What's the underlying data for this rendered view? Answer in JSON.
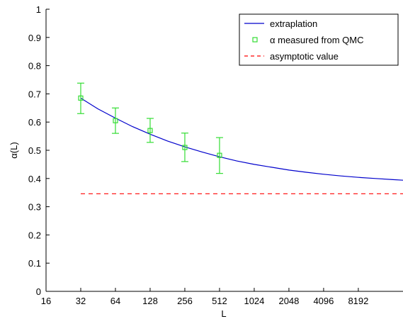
{
  "chart_data": {
    "type": "line",
    "title": "",
    "xlabel": "L",
    "ylabel": "α(L)",
    "xscale": "log2",
    "xlim": [
      16,
      20000
    ],
    "ylim": [
      0,
      1
    ],
    "grid": false,
    "legend_position": "top-right",
    "x_ticks": [
      16,
      32,
      64,
      128,
      256,
      512,
      1024,
      2048,
      4096,
      8192
    ],
    "x_tick_labels": [
      "16",
      "32",
      "64",
      "128",
      "256",
      "512",
      "1024",
      "2048",
      "4096",
      "8192"
    ],
    "y_ticks": [
      0,
      0.1,
      0.2,
      0.3,
      0.4,
      0.5,
      0.6,
      0.7,
      0.8,
      0.9,
      1
    ],
    "y_tick_labels": [
      "0",
      "0.1",
      "0.2",
      "0.3",
      "0.4",
      "0.5",
      "0.6",
      "0.7",
      "0.8",
      "0.9",
      "1"
    ],
    "series": [
      {
        "name": "extraplation",
        "kind": "line",
        "color": "#0000cc",
        "x": [
          32,
          45,
          64,
          90,
          128,
          181,
          256,
          362,
          512,
          724,
          1024,
          1448,
          2048,
          2896,
          4096,
          5793,
          8192,
          11585,
          16384,
          20000
        ],
        "y": [
          0.685,
          0.647,
          0.614,
          0.584,
          0.557,
          0.533,
          0.512,
          0.494,
          0.477,
          0.462,
          0.45,
          0.44,
          0.43,
          0.422,
          0.415,
          0.409,
          0.404,
          0.4,
          0.396,
          0.394
        ]
      },
      {
        "name": "α measured from QMC",
        "kind": "errorbar",
        "color": "#33dd33",
        "x": [
          32,
          64,
          128,
          256,
          512
        ],
        "y": [
          0.685,
          0.605,
          0.57,
          0.51,
          0.482
        ],
        "err_low": [
          0.055,
          0.045,
          0.042,
          0.05,
          0.064
        ],
        "err_high": [
          0.053,
          0.045,
          0.043,
          0.051,
          0.063
        ]
      },
      {
        "name": "asymptotic value",
        "kind": "dashed-line",
        "color": "#ff0000",
        "x": [
          32,
          20000
        ],
        "y": [
          0.346,
          0.346
        ]
      }
    ]
  }
}
